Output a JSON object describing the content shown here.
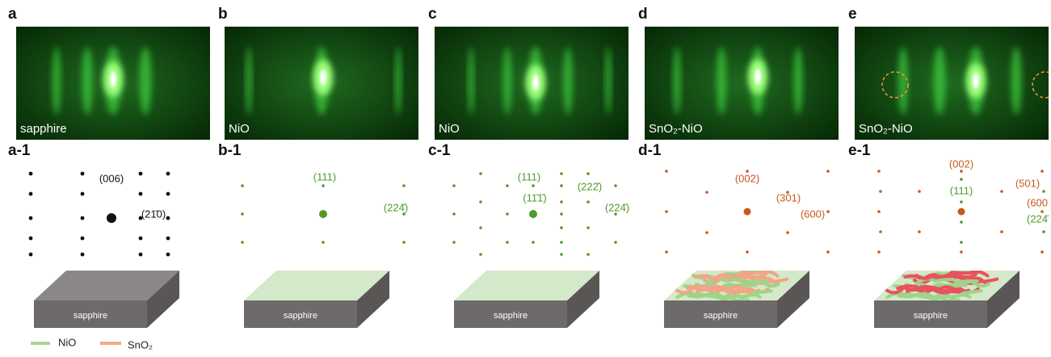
{
  "panels": [
    {
      "letter": "a",
      "image_label": "sapphire",
      "pattern_label": "a-1",
      "indices": [
        "(006)",
        "(21̄0)"
      ],
      "substrate": "sapphire"
    },
    {
      "letter": "b",
      "image_label": "NiO",
      "pattern_label": "b-1",
      "indices": [
        "(111)",
        "(224̄)"
      ],
      "substrate": "sapphire"
    },
    {
      "letter": "c",
      "image_label": "NiO",
      "pattern_label": "c-1",
      "indices": [
        "(111)",
        "(11̄1̄)",
        "(222̄)",
        "(224̄)"
      ],
      "substrate": "sapphire"
    },
    {
      "letter": "d",
      "image_label": "SnO₂-NiO",
      "pattern_label": "d-1",
      "indices": [
        "(002)",
        "(301)",
        "(600)"
      ],
      "substrate": "sapphire"
    },
    {
      "letter": "e",
      "image_label": "SnO₂-NiO",
      "pattern_label": "e-1",
      "indices": [
        "(002)",
        "(111)",
        "(501)",
        "(600",
        "(224̄"
      ],
      "substrate": "sapphire"
    }
  ],
  "legend": [
    "NiO",
    "SnO₂"
  ]
}
